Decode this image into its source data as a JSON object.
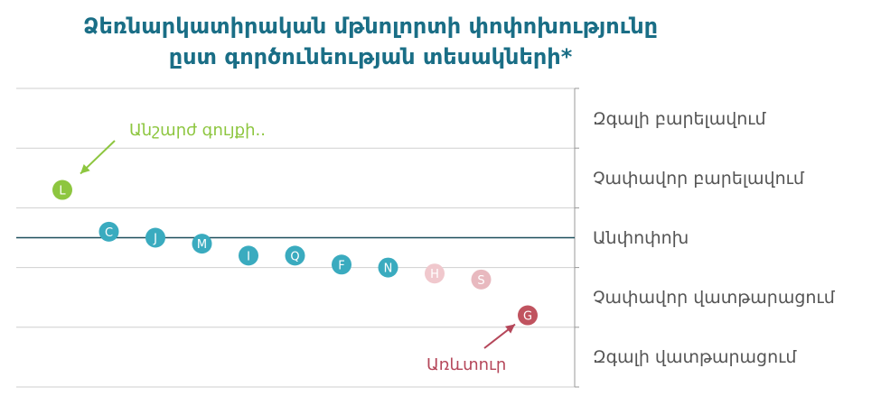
{
  "chart_data": {
    "type": "scatter",
    "title_line1": "Ձեռնարկատիրական մթնոլորտի փոփոխությունը",
    "title_line2": "ըստ գործունեության տեսակների*",
    "y_categories": [
      "Զգալի բարելավում",
      "Չափավոր բարելավում",
      "Անփոփոխ",
      "Չափավոր վատթարացում",
      "Զգալի վատթարացում"
    ],
    "ylim": [
      -2.5,
      2.5
    ],
    "points": [
      {
        "label": "L",
        "y": 0.8,
        "color": "#8dc63f"
      },
      {
        "label": "C",
        "y": 0.1,
        "color": "#3aabbf"
      },
      {
        "label": "J",
        "y": 0.0,
        "color": "#3aabbf"
      },
      {
        "label": "M",
        "y": -0.1,
        "color": "#3aabbf"
      },
      {
        "label": "I",
        "y": -0.3,
        "color": "#3aabbf"
      },
      {
        "label": "Q",
        "y": -0.3,
        "color": "#3aabbf"
      },
      {
        "label": "F",
        "y": -0.45,
        "color": "#3aabbf"
      },
      {
        "label": "N",
        "y": -0.5,
        "color": "#3aabbf"
      },
      {
        "label": "H",
        "y": -0.6,
        "color": "#f0c8cd"
      },
      {
        "label": "S",
        "y": -0.7,
        "color": "#e8b9bf"
      },
      {
        "label": "G",
        "y": -1.3,
        "color": "#c0535f"
      }
    ],
    "annotations": {
      "top": {
        "text": "Անշարժ գույքի..",
        "color": "#8dc63f"
      },
      "bottom": {
        "text": "Առևտուր",
        "color": "#b5475a"
      }
    },
    "zero_line_color": "#1d4f5c",
    "grid": true
  }
}
